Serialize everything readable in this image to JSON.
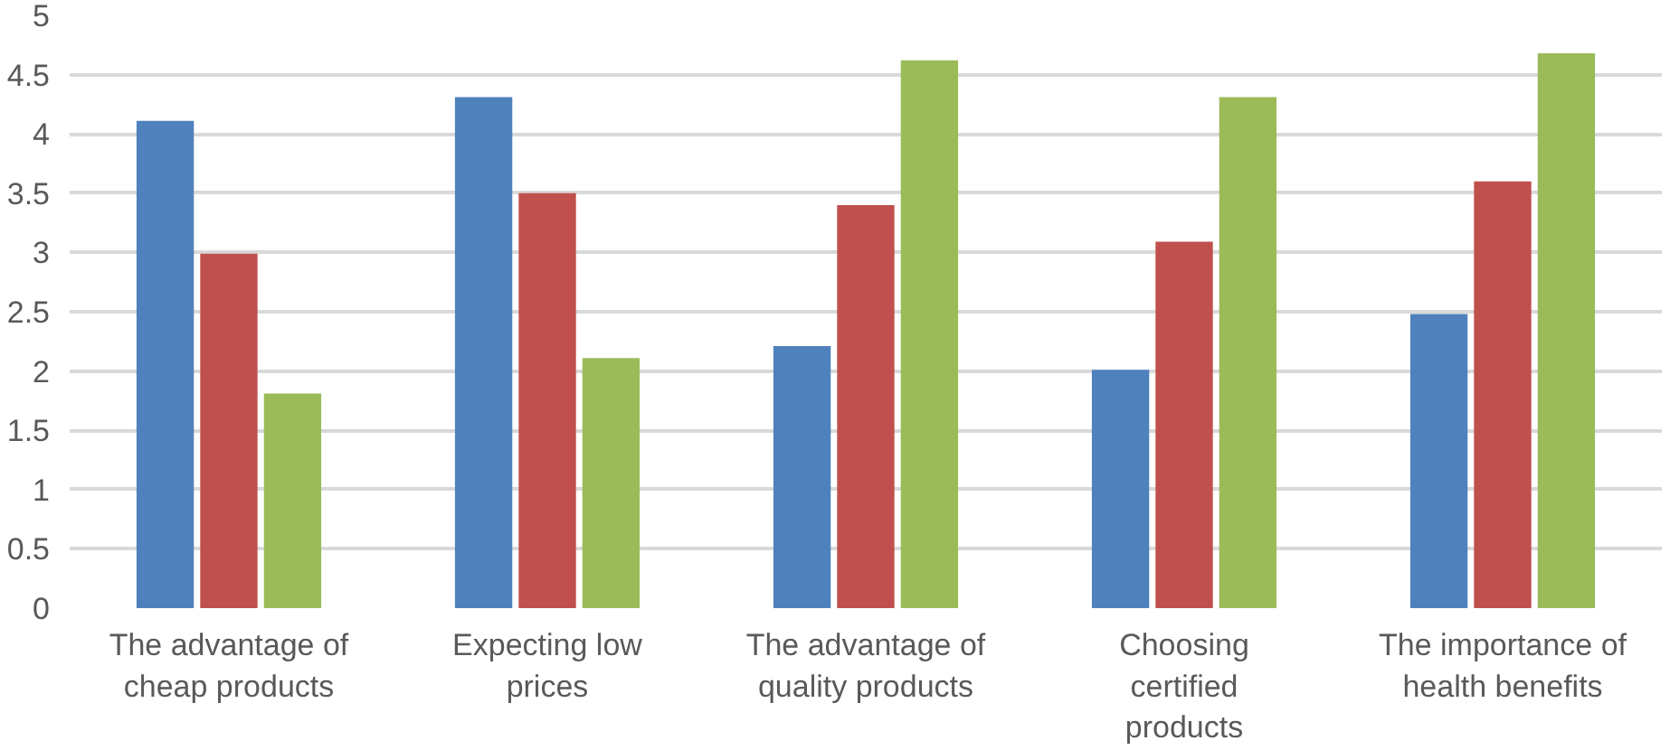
{
  "chart_data": {
    "type": "bar",
    "categories": [
      "The advantage of cheap products",
      "Expecting low prices",
      "The advantage of quality products",
      "Choosing certified products",
      "The importance of health benefits"
    ],
    "series": [
      {
        "color": "#4f81bd",
        "values": [
          4.11,
          4.31,
          2.21,
          2.01,
          2.48
        ]
      },
      {
        "color": "#c0504d",
        "values": [
          2.99,
          3.5,
          3.4,
          3.09,
          3.6
        ]
      },
      {
        "color": "#9bbb59",
        "values": [
          1.81,
          2.11,
          4.62,
          4.31,
          4.68
        ]
      }
    ],
    "ylim": [
      0,
      5
    ],
    "yticks": [
      0,
      0.5,
      1,
      1.5,
      2,
      2.5,
      3,
      3.5,
      4,
      4.5,
      5
    ],
    "grid": "y"
  }
}
